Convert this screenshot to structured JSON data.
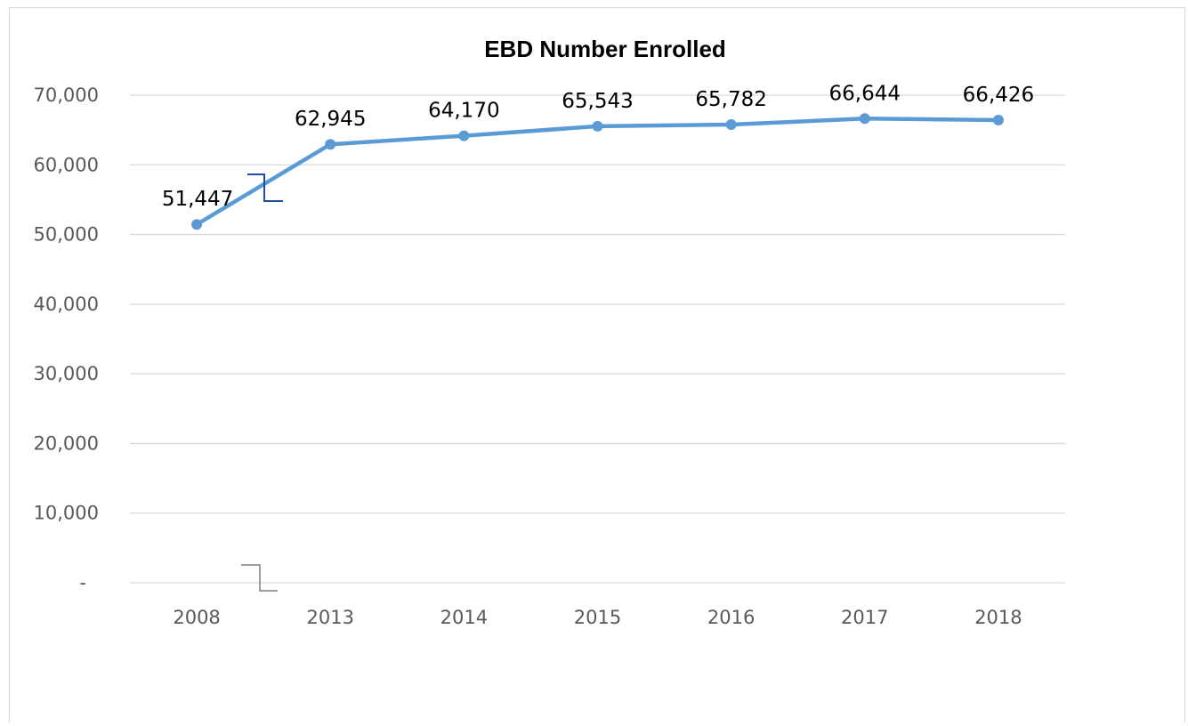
{
  "chart_data": {
    "type": "line",
    "title": "EBD Number Enrolled",
    "xlabel": "",
    "ylabel": "",
    "categories": [
      "2008",
      "2013",
      "2014",
      "2015",
      "2016",
      "2017",
      "2018"
    ],
    "series": [
      {
        "values": [
          51447,
          62945,
          64170,
          65543,
          65782,
          66644,
          66426
        ],
        "labels": [
          "51,447",
          "62,945",
          "64,170",
          "65,543",
          "65,782",
          "66,644",
          "66,426"
        ],
        "color": "#5b9bd5"
      }
    ],
    "yticks": [
      {
        "value": 0,
        "label": "-"
      },
      {
        "value": 10000,
        "label": "10,000"
      },
      {
        "value": 20000,
        "label": "20,000"
      },
      {
        "value": 30000,
        "label": "30,000"
      },
      {
        "value": 40000,
        "label": "40,000"
      },
      {
        "value": 50000,
        "label": "50,000"
      },
      {
        "value": 60000,
        "label": "60,000"
      },
      {
        "value": 70000,
        "label": "70,000"
      }
    ],
    "ylim": [
      0,
      70000
    ],
    "grid": true,
    "legend": "none",
    "annotations": [
      "axis-break-marks"
    ]
  }
}
